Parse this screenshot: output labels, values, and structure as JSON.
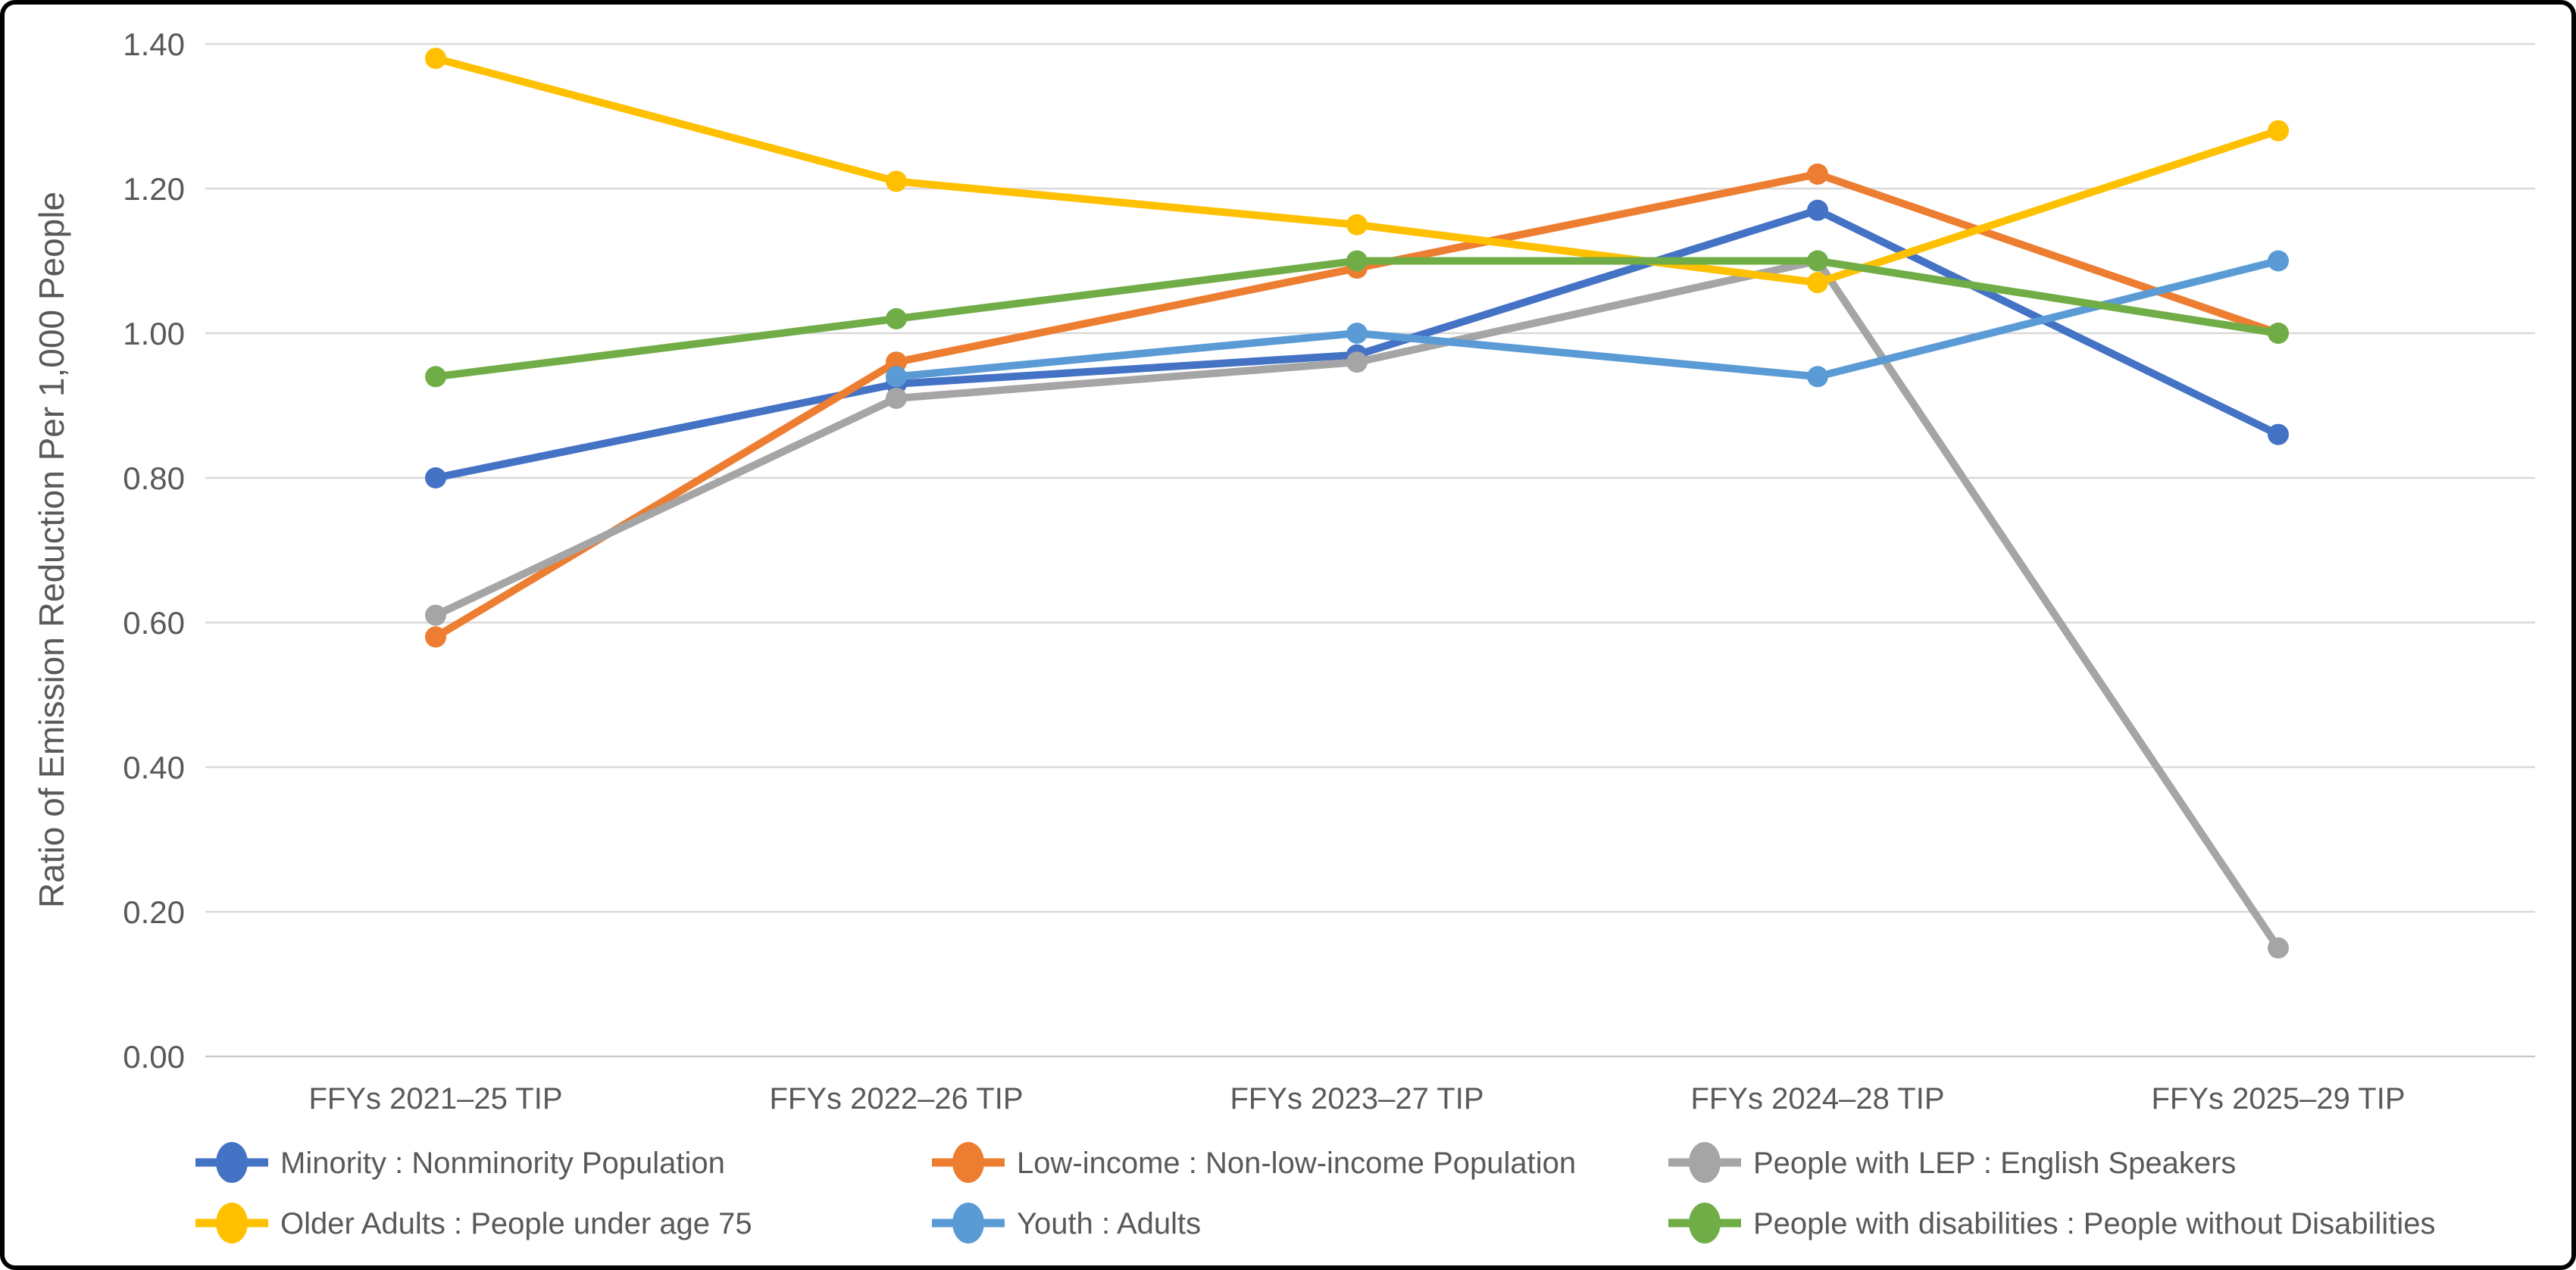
{
  "frame": {
    "background": "#ffffff",
    "border_color": "#000000"
  },
  "chart_data": {
    "type": "line",
    "title": "",
    "xlabel": "",
    "ylabel": "Ratio of Emission Reduction Per 1,000 People",
    "categories": [
      "FFYs 2021–25 TIP",
      "FFYs 2022–26 TIP",
      "FFYs 2023–27 TIP",
      "FFYs 2024–28 TIP",
      "FFYs 2025–29 TIP"
    ],
    "series": [
      {
        "name": "Minority : Nonminority Population",
        "color": "#4472C4",
        "values": [
          0.8,
          0.93,
          0.97,
          1.17,
          0.86
        ]
      },
      {
        "name": "Low-income : Non-low-income Population",
        "color": "#ED7D31",
        "values": [
          0.58,
          0.96,
          1.09,
          1.22,
          1.0
        ]
      },
      {
        "name": "People with LEP : English Speakers",
        "color": "#A5A5A5",
        "values": [
          0.61,
          0.91,
          0.96,
          1.1,
          0.15
        ]
      },
      {
        "name": "Older Adults : People under age 75",
        "color": "#FFC000",
        "values": [
          1.38,
          1.21,
          1.15,
          1.07,
          1.28
        ]
      },
      {
        "name": "Youth : Adults",
        "color": "#5B9BD5",
        "values": [
          null,
          0.94,
          1.0,
          0.94,
          1.1
        ]
      },
      {
        "name": "People with disabilities : People without Disabilities",
        "color": "#70AD47",
        "values": [
          0.94,
          1.02,
          1.1,
          1.1,
          1.0
        ]
      }
    ],
    "y_axis": {
      "min": 0.0,
      "max": 1.4,
      "step": 0.2,
      "decimals": 2
    },
    "y_tick_labels": [
      "0.00",
      "0.20",
      "0.40",
      "0.60",
      "0.80",
      "1.00",
      "1.20",
      "1.40"
    ],
    "grid": true,
    "legend_position": "bottom",
    "legend_rows": [
      [
        0,
        1,
        2
      ],
      [
        3,
        4,
        5
      ]
    ]
  },
  "styles": {
    "grid_color": "#D9D9D9",
    "baseline_color": "#C9C9C9",
    "axis_text_color": "#595959",
    "legend_text_color": "#595959"
  }
}
